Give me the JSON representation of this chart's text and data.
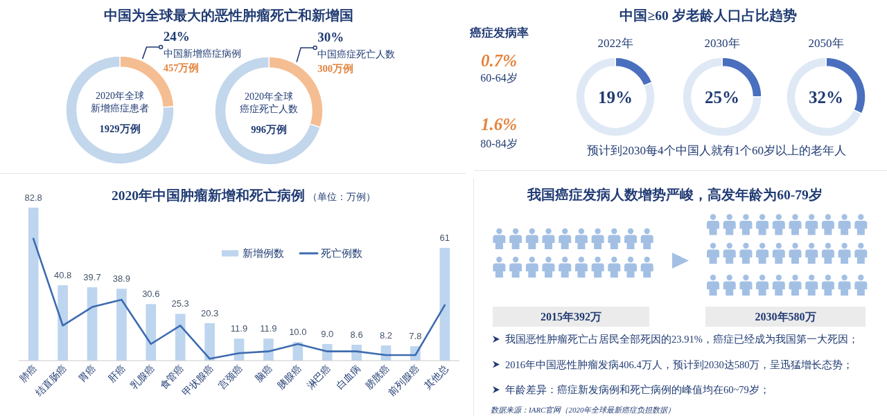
{
  "chart_data": [
    {
      "type": "donut",
      "title": "中国为全球最大的恶性肿瘤死亡和新增国",
      "categories": [
        "中国新增癌症病例",
        null
      ],
      "values": [
        24,
        76
      ],
      "colors": [
        "#f5bd92",
        "#c2d6ec"
      ],
      "value_labels": [
        "24%",
        null
      ],
      "annotations": [
        "2020年全球",
        "新增癌症患者",
        "1929万例",
        "457万例"
      ]
    },
    {
      "type": "donut",
      "categories": [
        "中国癌症死亡人数",
        null
      ],
      "values": [
        30,
        70
      ],
      "colors": [
        "#f5bd92",
        "#c2d6ec"
      ],
      "value_labels": [
        "30%",
        null
      ],
      "annotations": [
        "2020年全球",
        "癌症死亡人数",
        "996万例",
        "300万例"
      ]
    },
    {
      "type": "other",
      "title": "癌症发病率",
      "annotations": [
        "0.7%",
        "60-64岁",
        "1.6%",
        "80-84岁"
      ]
    },
    {
      "type": "other",
      "title": "中国≥60 岁老龄人口占比趋势",
      "annotations": [
        "预计到2030每4个中国人就有1个60岁以上的老年人"
      ]
    },
    {
      "type": "donut",
      "title": "2022年",
      "categories": [
        null,
        null
      ],
      "values": [
        19,
        81
      ],
      "colors": [
        "#4a6fbe",
        "#dfe9f5"
      ],
      "annotations": [
        "19%"
      ]
    },
    {
      "type": "donut",
      "title": "2030年",
      "categories": [
        null,
        null
      ],
      "values": [
        25,
        75
      ],
      "colors": [
        "#4a6fbe",
        "#dfe9f5"
      ],
      "annotations": [
        "25%"
      ]
    },
    {
      "type": "donut",
      "title": "2050年",
      "categories": [
        null,
        null
      ],
      "values": [
        32,
        68
      ],
      "colors": [
        "#4a6fbe",
        "#dfe9f5"
      ],
      "annotations": [
        "32%"
      ]
    },
    {
      "type": "bar",
      "title": "2020年中国肿瘤新增和死亡病例",
      "subtitle": "（单位：万例）",
      "categories": [
        "肺癌",
        "结直肠癌",
        "胃癌",
        "肝癌",
        "乳腺癌",
        "食管癌",
        "甲状腺癌",
        "宫颈癌",
        "脑癌",
        "胰腺癌",
        "淋巴癌",
        "白血病",
        "膀胱癌",
        "前列腺癌",
        "其他总"
      ],
      "series": [
        {
          "name": "新增例数",
          "type": "bar",
          "color": "#bdd5ee",
          "values": [
            82.8,
            40.8,
            39.7,
            38.9,
            30.6,
            25.3,
            20.3,
            11.9,
            11.9,
            10.0,
            9.0,
            8.6,
            8.2,
            7.8,
            61
          ],
          "value_labels": [
            "82.8",
            "40.8",
            "39.7",
            "38.9",
            "30.6",
            "25.3",
            "20.3",
            "11.9",
            "11.9",
            "10.0",
            "9.0",
            "8.6",
            "8.2",
            "7.8",
            "61"
          ]
        },
        {
          "name": "死亡例数",
          "type": "line",
          "color": "#3d6bb0",
          "values": [
            66,
            19,
            29,
            33,
            9,
            19,
            1,
            4,
            5,
            9,
            5,
            5,
            3,
            3,
            30
          ]
        }
      ],
      "legend": "top right"
    },
    {
      "type": "other",
      "title": "我国癌症发病人数增势严峻，高发年龄为60-79岁",
      "annotations": [
        "2015年392万",
        "2030年580万",
        "我国恶性肿瘤死亡占居民全部死因的23.91%，癌症已经成为我国第一大死因；",
        "2016年中国恶性肿瘤发病406.4万人，预计到2030达580万，呈迅猛增长态势；",
        "年龄差异：癌症新发病例和死亡病例的峰值均在60~79岁；",
        "数据来源：IARC官网（2020年全球最新癌症负担数据）"
      ]
    }
  ]
}
